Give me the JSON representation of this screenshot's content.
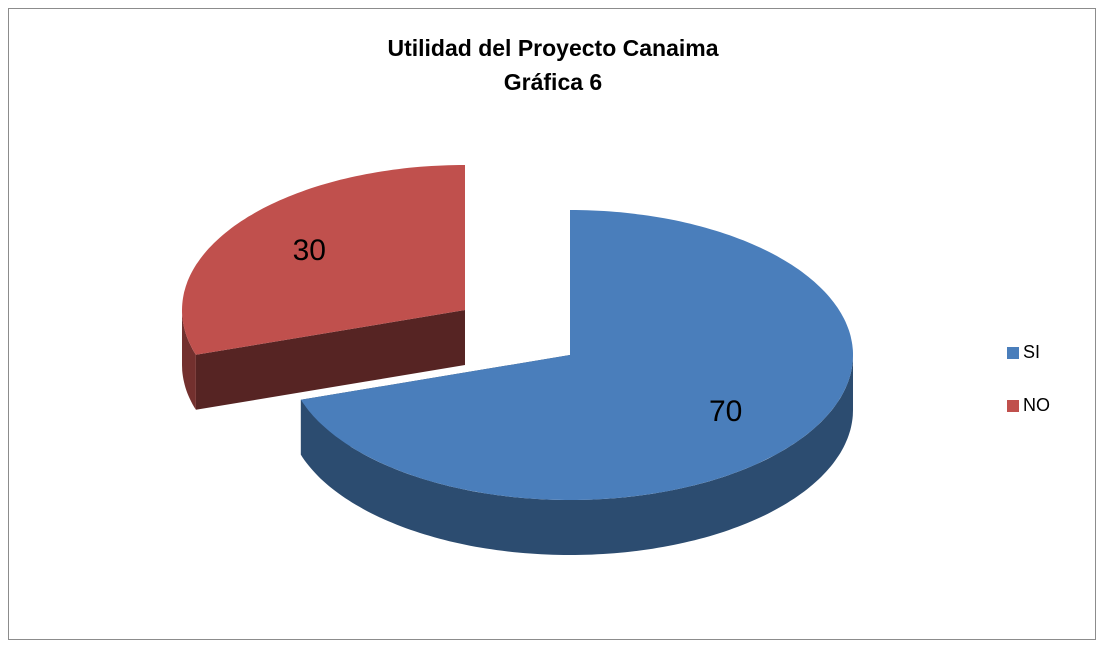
{
  "chart_data": {
    "type": "pie",
    "title": "Utilidad del Proyecto Canaima",
    "subtitle": "Gráfica 6",
    "categories": [
      "SI",
      "NO"
    ],
    "values": [
      70,
      30
    ],
    "colors": [
      "#4a7ebb",
      "#c0504d"
    ],
    "legend": "right",
    "exploded": [
      false,
      true
    ]
  }
}
